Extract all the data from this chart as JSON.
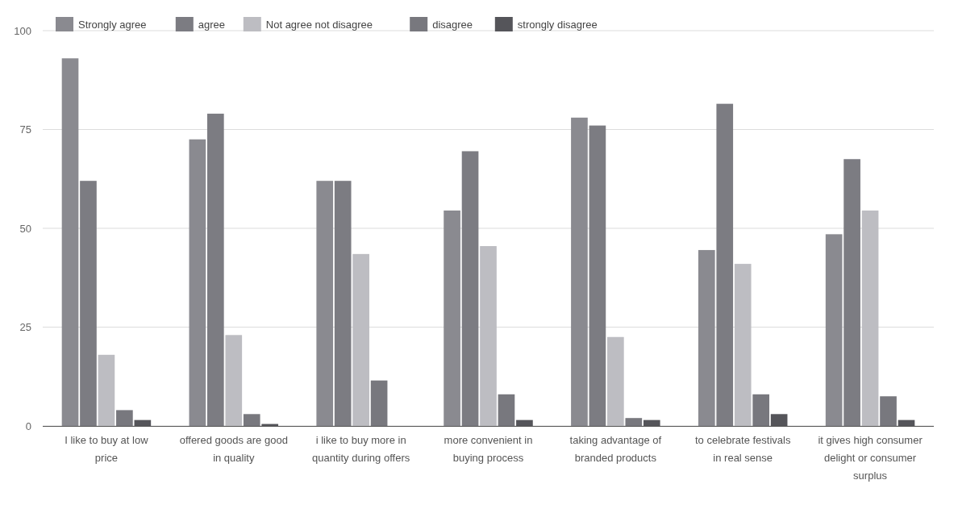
{
  "chart_data": {
    "type": "bar",
    "categories": [
      "I like to buy at low price",
      "offered goods are good in quality",
      "i like to buy more in quantity during offers",
      "more convenient in buying process",
      "taking advantage of branded products",
      "to celebrate festivals in real sense",
      "it gives high consumer delight or consumer surplus"
    ],
    "series": [
      {
        "name": "Strongly agree",
        "color": "#8a8a90",
        "values": [
          93,
          72.5,
          62,
          54.5,
          78,
          44.5,
          48.5
        ]
      },
      {
        "name": "agree",
        "color": "#7c7c82",
        "values": [
          62,
          79,
          62,
          69.5,
          76,
          81.5,
          67.5
        ]
      },
      {
        "name": "Not agree not disagree",
        "color": "#bdbdc2",
        "values": [
          18,
          23,
          43.5,
          45.5,
          22.5,
          41,
          54.5
        ]
      },
      {
        "name": "disagree",
        "color": "#78787e",
        "values": [
          4,
          3,
          11.5,
          8,
          2,
          8,
          7.5
        ]
      },
      {
        "name": "strongly disagree",
        "color": "#55555a",
        "values": [
          1.5,
          0.5,
          0,
          1.5,
          1.5,
          3,
          1.5
        ]
      }
    ],
    "ylim": [
      0,
      100
    ],
    "yticks": [
      0,
      25,
      50,
      75,
      100
    ],
    "grid": "y",
    "legend": "top left"
  }
}
